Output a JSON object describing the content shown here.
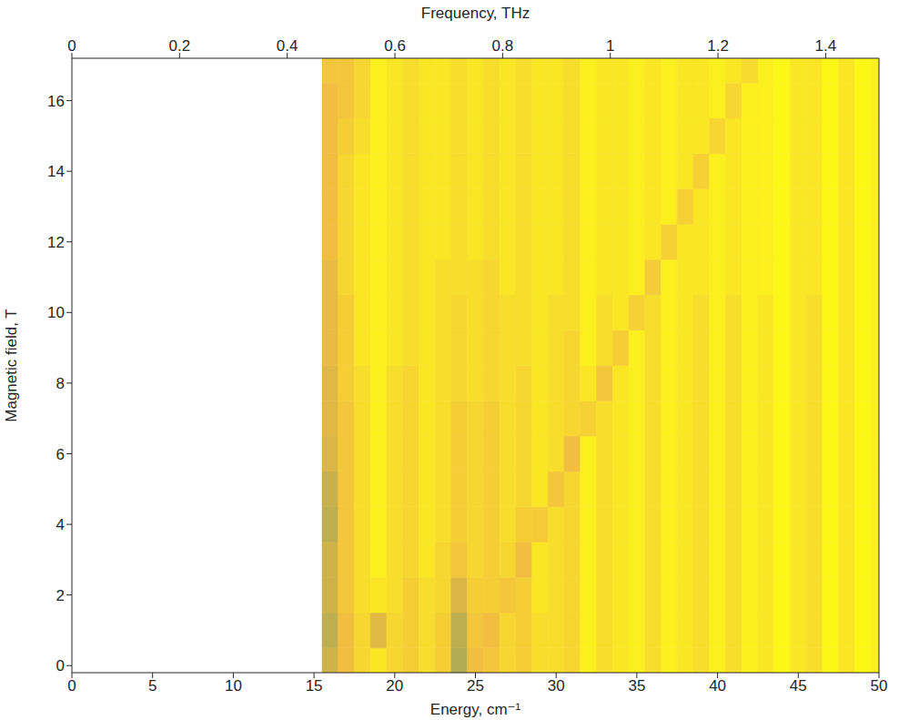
{
  "chart_data": {
    "type": "heatmap",
    "xlabel": "Energy, cm⁻¹",
    "ylabel": "Magnetic field, T",
    "x2label": "Frequency, THz",
    "xlim": [
      0,
      50
    ],
    "xticks": [
      0,
      5,
      10,
      15,
      20,
      25,
      30,
      35,
      40,
      45,
      50
    ],
    "x2lim": [
      0,
      1.499
    ],
    "x2ticks": [
      0,
      0.2,
      0.4,
      0.6,
      0.8,
      1,
      1.2,
      1.4
    ],
    "ylim": [
      -0.2,
      17.2
    ],
    "yticks": [
      0,
      2,
      4,
      6,
      8,
      10,
      12,
      14,
      16
    ],
    "zlim": [
      0,
      1
    ],
    "x": [
      16,
      17,
      18,
      19,
      20,
      21,
      22,
      23,
      24,
      25,
      26,
      27,
      28,
      29,
      30,
      31,
      32,
      33,
      34,
      35,
      36,
      37,
      38,
      39,
      40,
      41,
      42,
      43,
      44,
      45,
      46,
      47,
      48,
      49,
      50
    ],
    "y": [
      0,
      1,
      2,
      3,
      4,
      5,
      6,
      7,
      8,
      9,
      10,
      11,
      12,
      13,
      14,
      15,
      16,
      17
    ],
    "cells": [
      [
        0.4,
        0.6,
        0.75,
        0.85,
        0.75,
        0.7,
        0.8,
        0.7,
        0.25,
        0.6,
        0.65,
        0.75,
        0.7,
        0.8,
        0.8,
        0.75,
        0.9,
        0.8,
        0.85,
        0.9,
        0.8,
        0.9,
        0.85,
        0.8,
        0.9,
        0.8,
        0.9,
        0.85,
        0.95,
        0.85,
        0.8,
        0.95,
        0.85,
        0.95,
        0.9
      ],
      [
        0.3,
        0.6,
        0.75,
        0.5,
        0.75,
        0.7,
        0.8,
        0.7,
        0.3,
        0.65,
        0.6,
        0.75,
        0.7,
        0.8,
        0.8,
        0.75,
        0.9,
        0.8,
        0.85,
        0.9,
        0.8,
        0.9,
        0.85,
        0.8,
        0.9,
        0.8,
        0.9,
        0.85,
        0.95,
        0.85,
        0.8,
        0.95,
        0.85,
        0.95,
        0.9
      ],
      [
        0.4,
        0.65,
        0.8,
        0.85,
        0.8,
        0.7,
        0.8,
        0.75,
        0.45,
        0.7,
        0.7,
        0.65,
        0.7,
        0.85,
        0.8,
        0.75,
        0.9,
        0.8,
        0.85,
        0.9,
        0.8,
        0.9,
        0.85,
        0.8,
        0.9,
        0.8,
        0.9,
        0.85,
        0.95,
        0.85,
        0.8,
        0.95,
        0.85,
        0.95,
        0.9
      ],
      [
        0.4,
        0.65,
        0.8,
        0.9,
        0.8,
        0.75,
        0.85,
        0.75,
        0.65,
        0.75,
        0.7,
        0.75,
        0.6,
        0.85,
        0.8,
        0.75,
        0.9,
        0.8,
        0.85,
        0.9,
        0.8,
        0.9,
        0.85,
        0.8,
        0.9,
        0.8,
        0.9,
        0.85,
        0.95,
        0.85,
        0.8,
        0.95,
        0.85,
        0.95,
        0.9
      ],
      [
        0.3,
        0.65,
        0.8,
        0.9,
        0.8,
        0.75,
        0.85,
        0.8,
        0.7,
        0.75,
        0.7,
        0.8,
        0.7,
        0.68,
        0.8,
        0.75,
        0.9,
        0.8,
        0.85,
        0.9,
        0.8,
        0.9,
        0.85,
        0.8,
        0.9,
        0.8,
        0.9,
        0.85,
        0.95,
        0.85,
        0.8,
        0.95,
        0.85,
        0.95,
        0.9
      ],
      [
        0.35,
        0.65,
        0.8,
        0.9,
        0.8,
        0.75,
        0.85,
        0.8,
        0.7,
        0.75,
        0.7,
        0.8,
        0.75,
        0.85,
        0.65,
        0.75,
        0.9,
        0.8,
        0.85,
        0.9,
        0.8,
        0.9,
        0.85,
        0.8,
        0.9,
        0.8,
        0.9,
        0.85,
        0.95,
        0.85,
        0.8,
        0.95,
        0.85,
        0.95,
        0.9
      ],
      [
        0.45,
        0.65,
        0.8,
        0.9,
        0.8,
        0.75,
        0.85,
        0.8,
        0.7,
        0.75,
        0.7,
        0.8,
        0.75,
        0.85,
        0.8,
        0.6,
        0.9,
        0.8,
        0.85,
        0.9,
        0.8,
        0.9,
        0.85,
        0.8,
        0.9,
        0.8,
        0.9,
        0.85,
        0.95,
        0.85,
        0.8,
        0.95,
        0.85,
        0.95,
        0.9
      ],
      [
        0.5,
        0.65,
        0.8,
        0.9,
        0.8,
        0.75,
        0.85,
        0.8,
        0.7,
        0.75,
        0.7,
        0.8,
        0.75,
        0.85,
        0.8,
        0.75,
        0.72,
        0.8,
        0.85,
        0.9,
        0.8,
        0.9,
        0.85,
        0.8,
        0.9,
        0.8,
        0.9,
        0.85,
        0.95,
        0.85,
        0.8,
        0.95,
        0.85,
        0.95,
        0.9
      ],
      [
        0.5,
        0.7,
        0.8,
        0.9,
        0.8,
        0.75,
        0.85,
        0.8,
        0.75,
        0.8,
        0.75,
        0.8,
        0.75,
        0.85,
        0.8,
        0.75,
        0.85,
        0.65,
        0.85,
        0.9,
        0.8,
        0.9,
        0.85,
        0.8,
        0.9,
        0.8,
        0.9,
        0.85,
        0.95,
        0.85,
        0.8,
        0.95,
        0.85,
        0.95,
        0.9
      ],
      [
        0.55,
        0.7,
        0.85,
        0.9,
        0.85,
        0.8,
        0.85,
        0.8,
        0.75,
        0.8,
        0.75,
        0.8,
        0.8,
        0.85,
        0.8,
        0.75,
        0.9,
        0.8,
        0.7,
        0.9,
        0.8,
        0.9,
        0.85,
        0.8,
        0.9,
        0.8,
        0.9,
        0.85,
        0.95,
        0.85,
        0.8,
        0.95,
        0.85,
        0.95,
        0.9
      ],
      [
        0.55,
        0.7,
        0.85,
        0.9,
        0.85,
        0.8,
        0.85,
        0.8,
        0.75,
        0.8,
        0.75,
        0.8,
        0.8,
        0.85,
        0.8,
        0.8,
        0.9,
        0.8,
        0.85,
        0.72,
        0.8,
        0.9,
        0.85,
        0.8,
        0.9,
        0.8,
        0.9,
        0.85,
        0.95,
        0.85,
        0.8,
        0.95,
        0.85,
        0.95,
        0.9
      ],
      [
        0.55,
        0.75,
        0.85,
        0.9,
        0.85,
        0.8,
        0.85,
        0.8,
        0.8,
        0.8,
        0.75,
        0.85,
        0.8,
        0.85,
        0.85,
        0.8,
        0.9,
        0.85,
        0.85,
        0.9,
        0.68,
        0.9,
        0.85,
        0.85,
        0.9,
        0.85,
        0.9,
        0.9,
        0.95,
        0.85,
        0.85,
        0.95,
        0.85,
        0.95,
        0.9
      ],
      [
        0.6,
        0.75,
        0.85,
        0.9,
        0.85,
        0.8,
        0.85,
        0.85,
        0.8,
        0.85,
        0.8,
        0.85,
        0.8,
        0.85,
        0.85,
        0.8,
        0.9,
        0.85,
        0.85,
        0.9,
        0.85,
        0.72,
        0.85,
        0.85,
        0.9,
        0.85,
        0.9,
        0.9,
        0.95,
        0.85,
        0.85,
        0.95,
        0.85,
        0.95,
        0.9
      ],
      [
        0.6,
        0.75,
        0.85,
        0.9,
        0.85,
        0.8,
        0.85,
        0.85,
        0.8,
        0.85,
        0.8,
        0.85,
        0.8,
        0.85,
        0.85,
        0.8,
        0.9,
        0.85,
        0.85,
        0.9,
        0.85,
        0.9,
        0.72,
        0.85,
        0.9,
        0.85,
        0.9,
        0.9,
        0.95,
        0.85,
        0.85,
        0.95,
        0.85,
        0.95,
        0.9
      ],
      [
        0.6,
        0.75,
        0.85,
        0.9,
        0.85,
        0.8,
        0.85,
        0.85,
        0.8,
        0.85,
        0.8,
        0.85,
        0.8,
        0.85,
        0.85,
        0.8,
        0.9,
        0.85,
        0.85,
        0.9,
        0.85,
        0.9,
        0.85,
        0.72,
        0.9,
        0.85,
        0.9,
        0.9,
        0.95,
        0.85,
        0.85,
        0.95,
        0.85,
        0.95,
        0.9
      ],
      [
        0.6,
        0.7,
        0.8,
        0.9,
        0.85,
        0.8,
        0.85,
        0.85,
        0.8,
        0.85,
        0.8,
        0.85,
        0.8,
        0.85,
        0.85,
        0.8,
        0.9,
        0.85,
        0.85,
        0.9,
        0.85,
        0.9,
        0.85,
        0.85,
        0.75,
        0.85,
        0.9,
        0.9,
        0.95,
        0.85,
        0.85,
        0.95,
        0.85,
        0.95,
        0.9
      ],
      [
        0.6,
        0.65,
        0.75,
        0.9,
        0.85,
        0.8,
        0.85,
        0.85,
        0.8,
        0.85,
        0.8,
        0.85,
        0.8,
        0.85,
        0.85,
        0.8,
        0.9,
        0.85,
        0.85,
        0.9,
        0.85,
        0.9,
        0.85,
        0.85,
        0.9,
        0.75,
        0.9,
        0.9,
        0.95,
        0.85,
        0.85,
        0.95,
        0.85,
        0.95,
        0.9
      ],
      [
        0.65,
        0.65,
        0.75,
        0.9,
        0.85,
        0.8,
        0.85,
        0.85,
        0.8,
        0.85,
        0.8,
        0.85,
        0.8,
        0.85,
        0.85,
        0.8,
        0.9,
        0.85,
        0.85,
        0.9,
        0.85,
        0.9,
        0.85,
        0.85,
        0.9,
        0.85,
        0.78,
        0.9,
        0.95,
        0.85,
        0.85,
        0.95,
        0.85,
        0.95,
        0.9
      ]
    ]
  }
}
